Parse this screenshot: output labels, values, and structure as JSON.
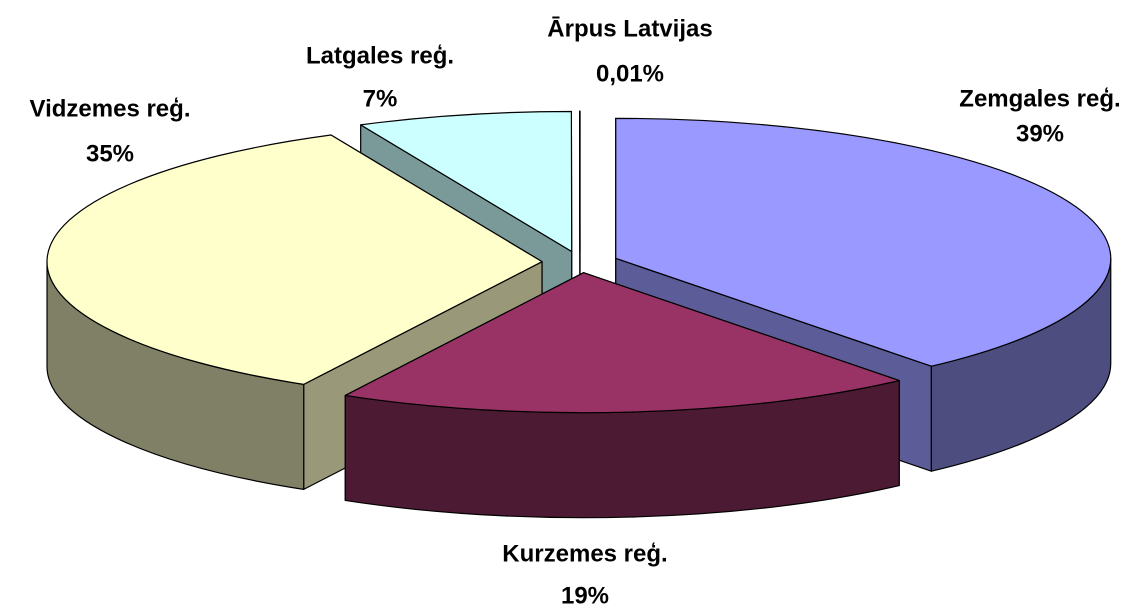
{
  "chart_data": {
    "type": "pie3d",
    "categories": [
      "Zemgales reģ.",
      "Kurzemes reģ.",
      "Vidzemes reģ.",
      "Latgales reģ.",
      "Ārpus Latvijas"
    ],
    "values": [
      39,
      19,
      35,
      7,
      0.01
    ],
    "value_labels": [
      "39%",
      "19%",
      "35%",
      "7%",
      "0,01%"
    ],
    "colors": [
      "#9999ff",
      "#993366",
      "#ffffcc",
      "#ccffff",
      "#ffffff"
    ]
  }
}
